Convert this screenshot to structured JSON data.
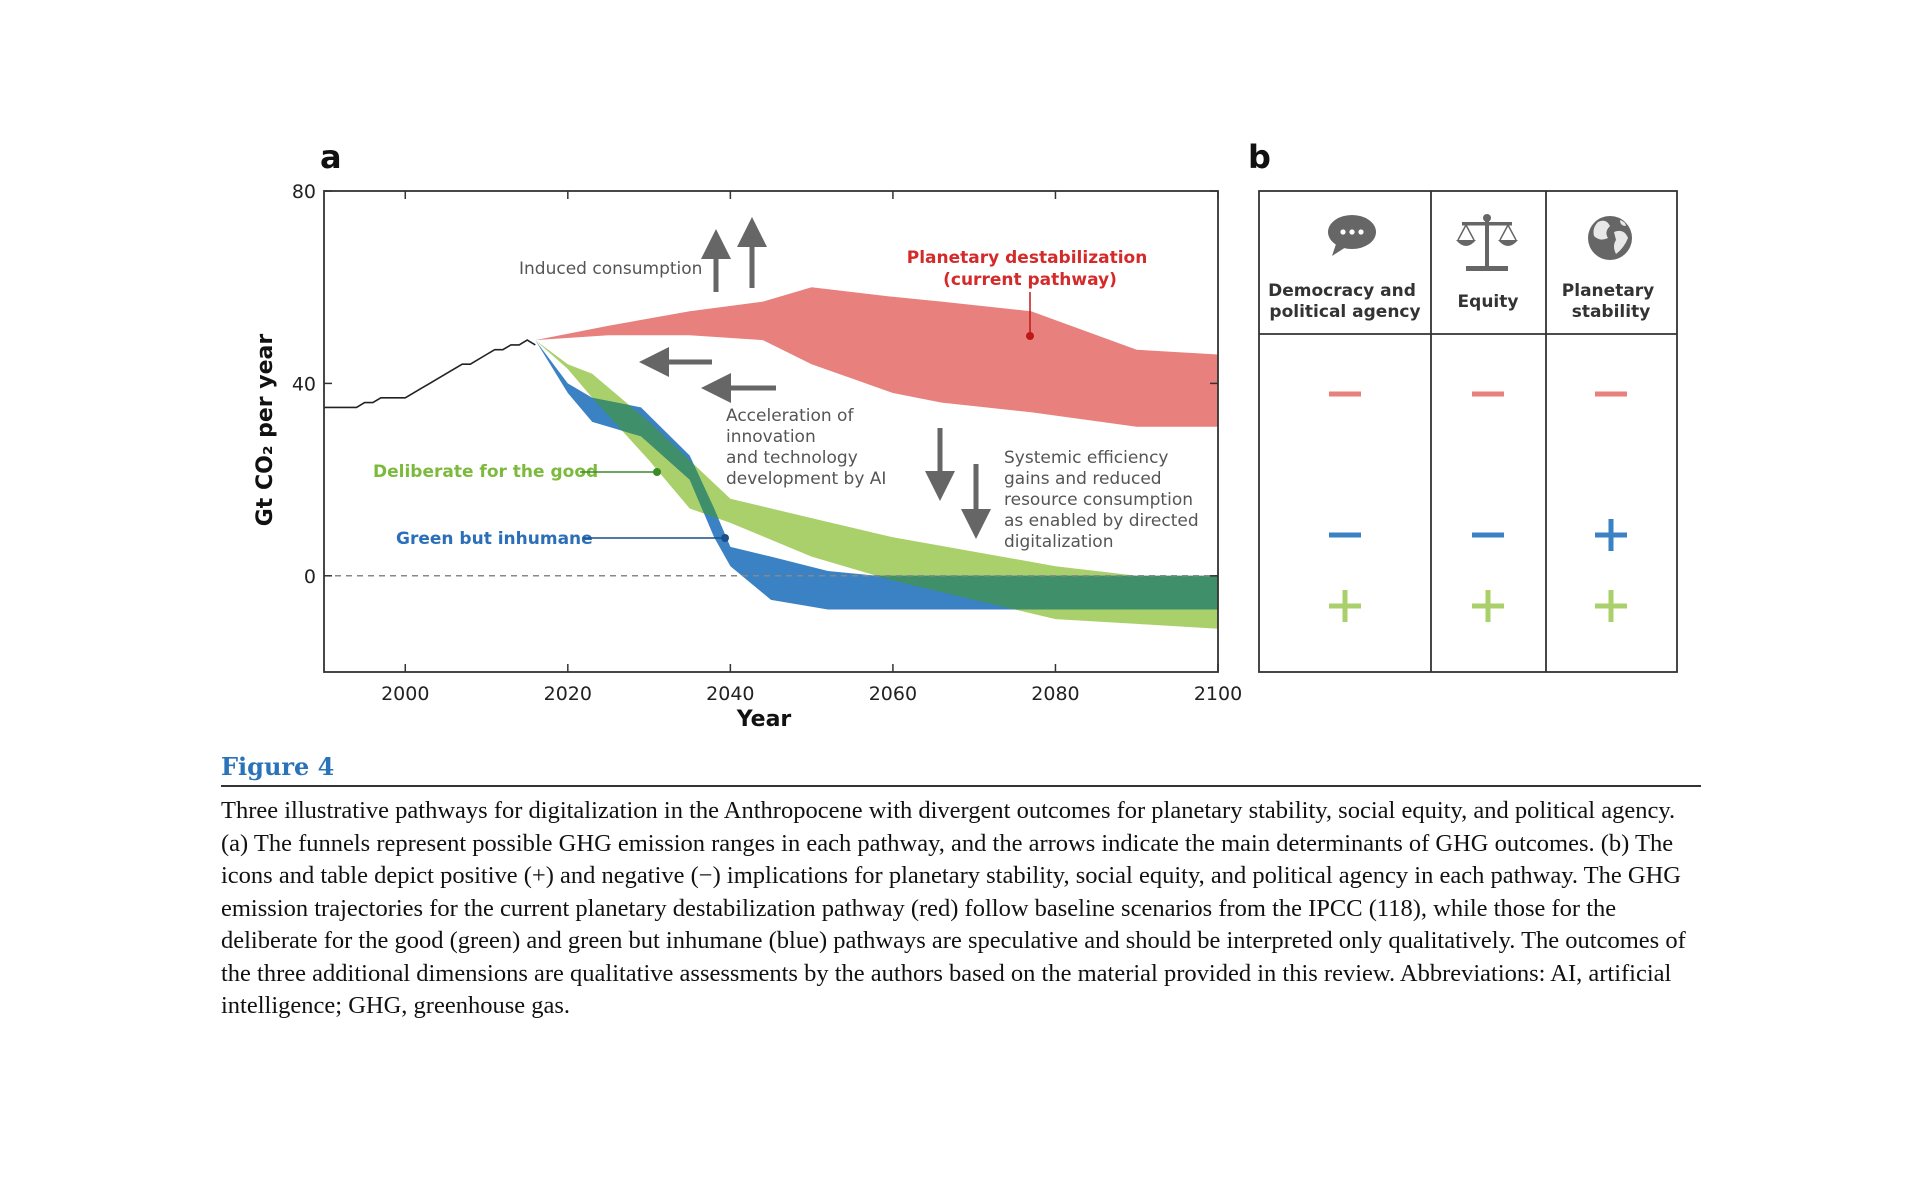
{
  "panels": {
    "a": "a",
    "b": "b"
  },
  "chart_data": {
    "type": "area",
    "xlabel": "Year",
    "ylabel": "Gt CO₂ per year",
    "xlim": [
      1990,
      2100
    ],
    "ylim": [
      -20,
      80
    ],
    "x_ticks": [
      2000,
      2020,
      2040,
      2060,
      2080,
      2100
    ],
    "y_ticks": [
      0,
      40,
      80
    ],
    "zero_line": "dashed",
    "historical": {
      "x": [
        1990,
        1994,
        1995,
        1996,
        1997,
        1998,
        2000,
        2002,
        2003,
        2005,
        2007,
        2008,
        2010,
        2011,
        2012,
        2013,
        2014,
        2015,
        2016
      ],
      "y": [
        35,
        35,
        36,
        36,
        37,
        37,
        37,
        39,
        40,
        42,
        44,
        44,
        46,
        47,
        47,
        48,
        48,
        49,
        48
      ]
    },
    "series": [
      {
        "name": "Planetary destabilization (current pathway)",
        "color": "#e8817d",
        "x": [
          2016,
          2025,
          2035,
          2044,
          2050,
          2060,
          2066,
          2077,
          2090,
          2100
        ],
        "upper": [
          49,
          52,
          55,
          57,
          60,
          58,
          57,
          55,
          47,
          46
        ],
        "lower": [
          49,
          50,
          50,
          49,
          44,
          38,
          36,
          34,
          31,
          31
        ]
      },
      {
        "name": "Deliberate for the good",
        "color": "#a9d06a",
        "x": [
          2016,
          2020,
          2023,
          2030,
          2035,
          2040,
          2050,
          2060,
          2080,
          2090,
          2100
        ],
        "upper": [
          49,
          44,
          42,
          32,
          24,
          16,
          12,
          8,
          2,
          0,
          0
        ],
        "lower": [
          49,
          43,
          37,
          24,
          14,
          11,
          4,
          -1,
          -9,
          -10,
          -11
        ]
      },
      {
        "name": "Green but inhumane",
        "color": "#3b82c4",
        "x": [
          2016,
          2020,
          2023,
          2029,
          2035,
          2038,
          2040,
          2045,
          2052,
          2058,
          2070,
          2100
        ],
        "upper": [
          49,
          40,
          37,
          35,
          25,
          14,
          6,
          4,
          1,
          0,
          0,
          0
        ],
        "lower": [
          49,
          38,
          32,
          29,
          20,
          8,
          2,
          -5,
          -7,
          -7,
          -7,
          -7
        ]
      }
    ],
    "series_labels": {
      "red": [
        "Planetary destabilization",
        "(current pathway)"
      ],
      "green": "Deliberate for the good",
      "blue": "Green but inhumane"
    },
    "annotations": {
      "induced": "Induced consumption",
      "acceleration": [
        "Acceleration of",
        "innovation",
        "and technology",
        "development by AI"
      ],
      "systemic": [
        "Systemic efficiency",
        "gains and reduced",
        "resource consumption",
        "as enabled by directed",
        "digitalization"
      ]
    },
    "colors": {
      "red": "#e8817d",
      "green": "#a9d06a",
      "blue": "#3b82c4",
      "overlap": "#3f8f6a"
    }
  },
  "table": {
    "columns": [
      {
        "icon": "speech-bubble-icon",
        "label": [
          "Democracy and",
          "political agency"
        ]
      },
      {
        "icon": "scales-icon",
        "label": [
          "Equity"
        ]
      },
      {
        "icon": "globe-icon",
        "label": [
          "Planetary",
          "stability"
        ]
      }
    ],
    "rows": [
      {
        "pathway": "red",
        "values": [
          "−",
          "−",
          "−"
        ]
      },
      {
        "pathway": "blue",
        "values": [
          "−",
          "−",
          "+"
        ]
      },
      {
        "pathway": "green",
        "values": [
          "+",
          "+",
          "+"
        ]
      }
    ]
  },
  "caption": {
    "title": "Figure 4",
    "text": "Three illustrative pathways for digitalization in the Anthropocene with divergent outcomes for planetary stability, social equity, and political agency. (a) The funnels represent possible GHG emission ranges in each pathway, and the arrows indicate the main determinants of GHG outcomes. (b) The icons and table depict positive (+) and negative (−) implications for planetary stability, social equity, and political agency in each pathway. The GHG emission trajectories for the current planetary destabilization pathway (red) follow baseline scenarios from the IPCC (118), while those for the deliberate for the good (green) and green but inhumane (blue) pathways are speculative and should be interpreted only qualitatively. The outcomes of the three additional dimensions are qualitative assessments by the authors based on the material provided in this review. Abbreviations: AI, artificial intelligence; GHG, greenhouse gas."
  }
}
